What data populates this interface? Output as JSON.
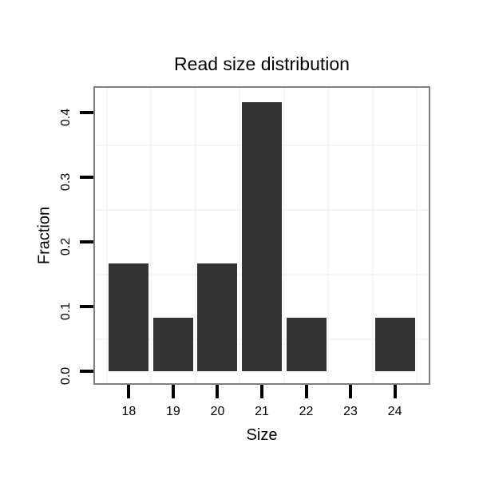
{
  "chart_data": {
    "type": "bar",
    "title": "Read size distribution",
    "xlabel": "Size",
    "ylabel": "Fraction",
    "categories": [
      18,
      19,
      20,
      21,
      22,
      23,
      24
    ],
    "values": [
      0.1667,
      0.0833,
      0.1667,
      0.4167,
      0.0833,
      0,
      0.0833
    ],
    "x_tick_labels": [
      "18",
      "19",
      "20",
      "21",
      "22",
      "23",
      "24"
    ],
    "y_tick_labels": [
      "0.0",
      "0.1",
      "0.2",
      "0.3",
      "0.4"
    ],
    "y_tick_values": [
      0,
      0.1,
      0.2,
      0.3,
      0.4
    ],
    "xlim": [
      17.2,
      24.8
    ],
    "ylim": [
      -0.021,
      0.441
    ],
    "bar_width": 0.9,
    "grid": {
      "minor_x": [
        17.5,
        18.5,
        19.5,
        20.5,
        21.5,
        22.5,
        23.5,
        24.5
      ],
      "minor_y": [
        0.05,
        0.15,
        0.25,
        0.35
      ]
    },
    "legend_position": "none",
    "colors": {
      "bar_fill": "#333333",
      "panel_border": "#7f7f7f",
      "grid_minor": "#f5f5f5",
      "tick": "#000000",
      "background": "#ffffff",
      "text": "#000000"
    }
  }
}
